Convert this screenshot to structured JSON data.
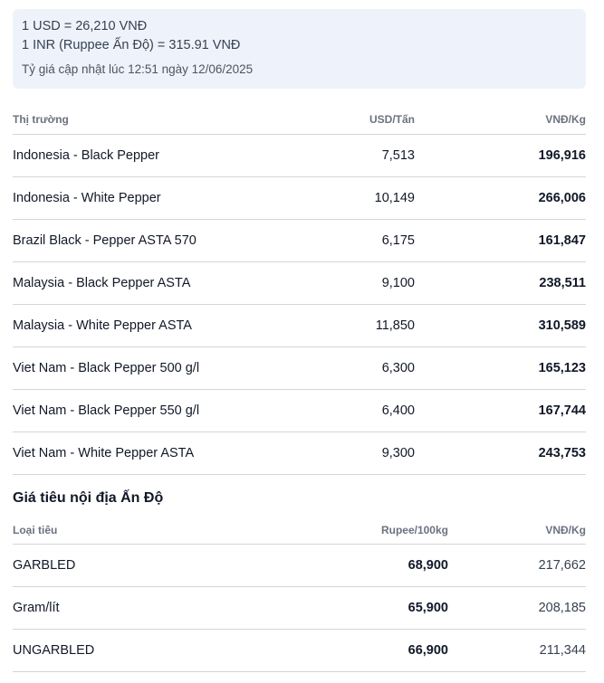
{
  "exchange": {
    "usd_line": "1 USD = 26,210 VNĐ",
    "inr_line": "1 INR (Ruppee Ấn Độ) = 315.91 VNĐ",
    "updated": "Tỷ giá cập nhật lúc 12:51 ngày 12/06/2025"
  },
  "world_table": {
    "headers": {
      "market": "Thị trường",
      "usd": "USD/Tấn",
      "vnd": "VNĐ/Kg"
    },
    "rows": [
      {
        "market": "Indonesia - Black Pepper",
        "usd": "7,513",
        "vnd": "196,916"
      },
      {
        "market": "Indonesia - White Pepper",
        "usd": "10,149",
        "vnd": "266,006"
      },
      {
        "market": "Brazil Black - Pepper ASTA 570",
        "usd": "6,175",
        "vnd": "161,847"
      },
      {
        "market": "Malaysia - Black Pepper ASTA",
        "usd": "9,100",
        "vnd": "238,511"
      },
      {
        "market": "Malaysia - White Pepper ASTA",
        "usd": "11,850",
        "vnd": "310,589"
      },
      {
        "market": "Viet Nam - Black Pepper 500 g/l",
        "usd": "6,300",
        "vnd": "165,123"
      },
      {
        "market": "Viet Nam - Black Pepper 550 g/l",
        "usd": "6,400",
        "vnd": "167,744"
      },
      {
        "market": "Viet Nam - White Pepper ASTA",
        "usd": "9,300",
        "vnd": "243,753"
      }
    ]
  },
  "india_section": {
    "title": "Giá tiêu nội địa Ấn Độ",
    "headers": {
      "type": "Loại tiêu",
      "rupee": "Rupee/100kg",
      "vnd": "VNĐ/Kg"
    },
    "rows": [
      {
        "type": "GARBLED",
        "rupee": "68,900",
        "vnd": "217,662"
      },
      {
        "type": "Gram/lít",
        "rupee": "65,900",
        "vnd": "208,185"
      },
      {
        "type": "UNGARBLED",
        "rupee": "66,900",
        "vnd": "211,344"
      }
    ]
  }
}
